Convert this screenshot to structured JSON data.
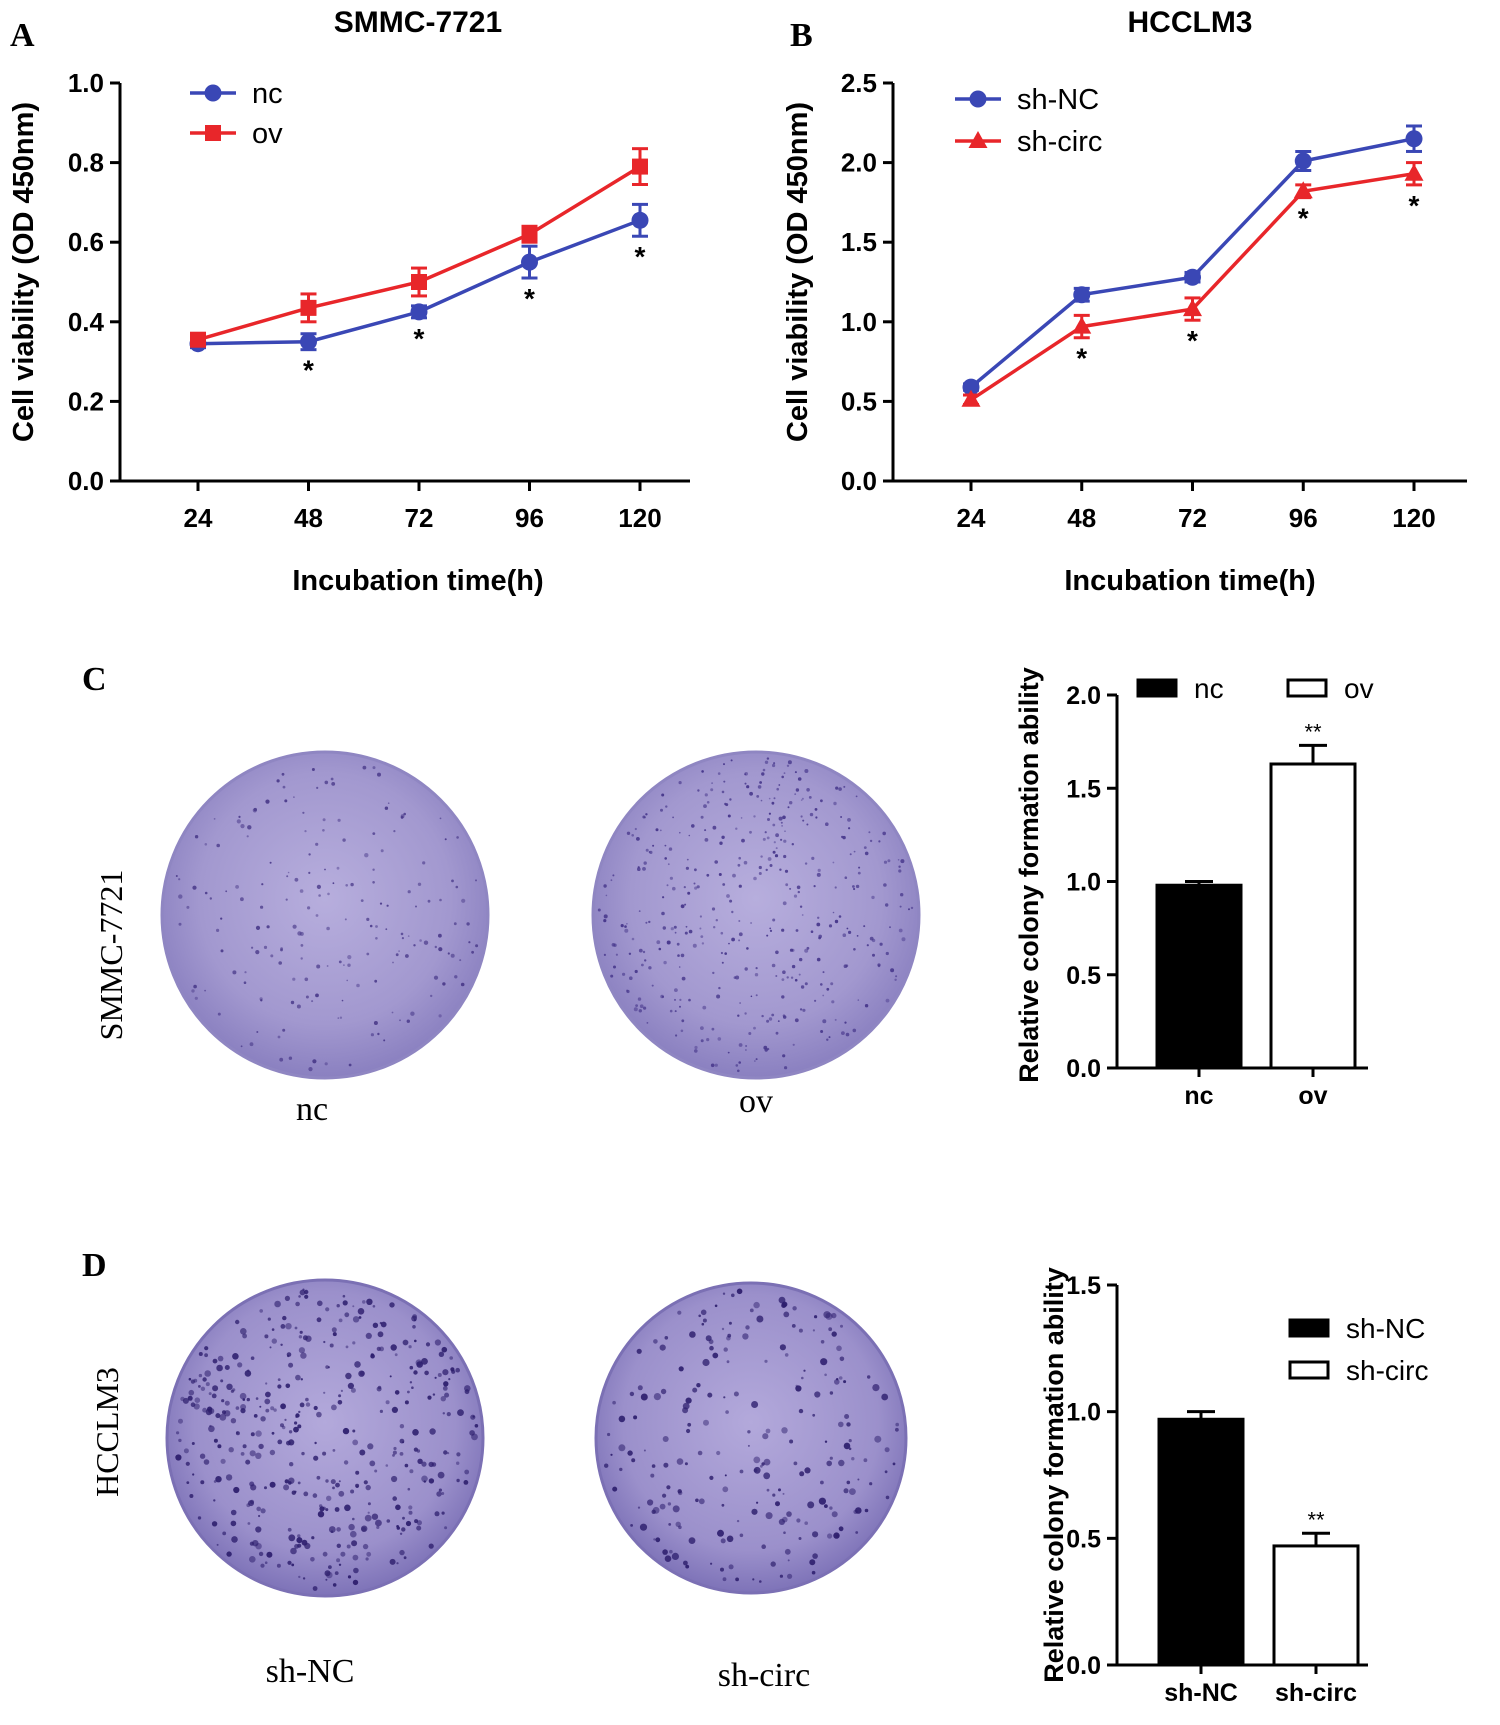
{
  "panel_labels": {
    "a": "A",
    "b": "B",
    "c": "C",
    "d": "D"
  },
  "colors": {
    "blue": "#3a47b5",
    "red": "#e8262a",
    "black": "#000000",
    "dish_fill": "#a49ad2",
    "dish_rim": "#8e84c4",
    "colony": "#3d2a7a"
  },
  "photos": {
    "c": {
      "side_label": "SMMC-7721",
      "dish_labels": [
        "nc",
        "ov"
      ]
    },
    "d": {
      "side_label": "HCCLM3",
      "dish_labels": [
        "sh-NC",
        "sh-circ"
      ]
    }
  },
  "chart_data": [
    {
      "id": "A",
      "type": "line",
      "title": "SMMC-7721",
      "xlabel": "Incubation time(h)",
      "ylabel": "Cell viability (OD 450nm)",
      "x": [
        24,
        48,
        72,
        96,
        120
      ],
      "x_tick_labels": [
        "24",
        "48",
        "72",
        "96",
        "120"
      ],
      "y_tick_labels": [
        "0.0",
        "0.2",
        "0.4",
        "0.6",
        "0.8",
        "1.0"
      ],
      "ylim": [
        0,
        1.0
      ],
      "y_step": 0.2,
      "legend_position": "top-left",
      "series": [
        {
          "name": "nc",
          "color": "#3a47b5",
          "values": [
            0.345,
            0.35,
            0.425,
            0.55,
            0.655
          ],
          "errors": [
            0.01,
            0.02,
            0.015,
            0.04,
            0.04
          ],
          "marker": "circle"
        },
        {
          "name": "ov",
          "color": "#e8262a",
          "values": [
            0.355,
            0.435,
            0.5,
            0.62,
            0.79
          ],
          "errors": [
            0.01,
            0.035,
            0.035,
            0.02,
            0.045
          ],
          "marker": "square"
        }
      ],
      "annotations": [
        {
          "x": 48,
          "text": "*"
        },
        {
          "x": 72,
          "text": "*"
        },
        {
          "x": 96,
          "text": "*"
        },
        {
          "x": 120,
          "text": "*"
        }
      ]
    },
    {
      "id": "B",
      "type": "line",
      "title": "HCCLM3",
      "xlabel": "Incubation time(h)",
      "ylabel": "Cell viability (OD 450nm)",
      "x": [
        24,
        48,
        72,
        96,
        120
      ],
      "x_tick_labels": [
        "24",
        "48",
        "72",
        "96",
        "120"
      ],
      "y_tick_labels": [
        "0.0",
        "0.5",
        "1.0",
        "1.5",
        "2.0",
        "2.5"
      ],
      "ylim": [
        0,
        2.5
      ],
      "y_step": 0.5,
      "legend_position": "top-left",
      "series": [
        {
          "name": "sh-NC",
          "color": "#3a47b5",
          "values": [
            0.59,
            1.17,
            1.28,
            2.01,
            2.15
          ],
          "errors": [
            0.02,
            0.04,
            0.03,
            0.06,
            0.08
          ],
          "marker": "circle"
        },
        {
          "name": "sh-circ",
          "color": "#e8262a",
          "values": [
            0.51,
            0.97,
            1.08,
            1.82,
            1.93
          ],
          "errors": [
            0.03,
            0.07,
            0.07,
            0.04,
            0.07
          ],
          "marker": "triangle"
        }
      ],
      "annotations": [
        {
          "x": 48,
          "text": "*"
        },
        {
          "x": 72,
          "text": "*"
        },
        {
          "x": 96,
          "text": "*"
        },
        {
          "x": 120,
          "text": "*"
        }
      ]
    },
    {
      "id": "C",
      "type": "bar",
      "ylabel": "Relative colony formation ability",
      "categories": [
        "nc",
        "ov"
      ],
      "values": [
        0.98,
        1.63
      ],
      "errors": [
        0.02,
        0.1
      ],
      "fills": [
        "#000000",
        "#ffffff"
      ],
      "y_tick_labels": [
        "0.0",
        "0.5",
        "1.0",
        "1.5",
        "2.0"
      ],
      "ylim": [
        0,
        2.0
      ],
      "y_step": 0.5,
      "legend_position": "top",
      "legend": [
        {
          "name": "nc",
          "fill": "#000000"
        },
        {
          "name": "ov",
          "fill": "#ffffff"
        }
      ],
      "annotations": [
        {
          "category": "ov",
          "text": "**"
        }
      ]
    },
    {
      "id": "D",
      "type": "bar",
      "ylabel": "Relative colony formation ability",
      "categories": [
        "sh-NC",
        "sh-circ"
      ],
      "values": [
        0.97,
        0.47
      ],
      "errors": [
        0.03,
        0.05
      ],
      "fills": [
        "#000000",
        "#ffffff"
      ],
      "y_tick_labels": [
        "0.0",
        "0.5",
        "1.0",
        "1.5"
      ],
      "ylim": [
        0,
        1.5
      ],
      "y_step": 0.5,
      "legend_position": "top-right",
      "legend": [
        {
          "name": "sh-NC",
          "fill": "#000000"
        },
        {
          "name": "sh-circ",
          "fill": "#ffffff"
        }
      ],
      "annotations": [
        {
          "category": "sh-circ",
          "text": "**"
        }
      ]
    }
  ]
}
